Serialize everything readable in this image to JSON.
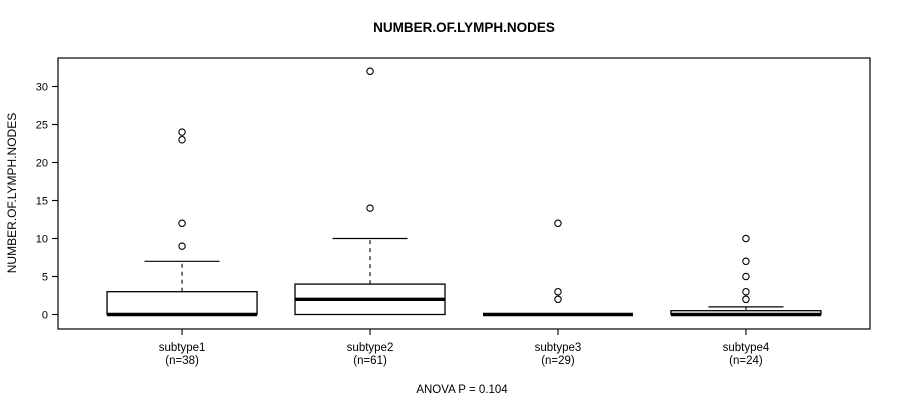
{
  "figure": {
    "title": "NUMBER.OF.LYMPH.NODES",
    "ylabel": "NUMBER.OF.LYMPH.NODES",
    "annotation": "ANOVA P = 0.104"
  },
  "chart_data": {
    "type": "boxplot",
    "title": "NUMBER.OF.LYMPH.NODES",
    "xlabel": "",
    "ylabel": "NUMBER.OF.LYMPH.NODES",
    "ylim": [
      0,
      32
    ],
    "yticks": [
      0,
      5,
      10,
      15,
      20,
      25,
      30
    ],
    "grid": false,
    "legend": false,
    "annotation": "ANOVA P = 0.104",
    "groups": [
      {
        "label": "subtype1",
        "sublabel": "(n=38)",
        "n": 38,
        "q1": 0,
        "median": 0,
        "q3": 3,
        "whisker_low": 0,
        "whisker_high": 7,
        "outliers": [
          9,
          12,
          23,
          24
        ]
      },
      {
        "label": "subtype2",
        "sublabel": "(n=61)",
        "n": 61,
        "q1": 0,
        "median": 2,
        "q3": 4,
        "whisker_low": 0,
        "whisker_high": 10,
        "outliers": [
          14,
          32
        ]
      },
      {
        "label": "subtype3",
        "sublabel": "(n=29)",
        "n": 29,
        "q1": 0,
        "median": 0,
        "q3": 0,
        "whisker_low": 0,
        "whisker_high": 0,
        "outliers": [
          2,
          3,
          12
        ]
      },
      {
        "label": "subtype4",
        "sublabel": "(n=24)",
        "n": 24,
        "q1": 0,
        "median": 0,
        "q3": 0.5,
        "whisker_low": 0,
        "whisker_high": 1,
        "outliers": [
          2,
          3,
          5,
          7,
          10
        ]
      }
    ],
    "colors": {
      "background": "#ffffff",
      "box_fill": "#ffffff",
      "stroke": "#000000",
      "frame": "#000000"
    }
  }
}
